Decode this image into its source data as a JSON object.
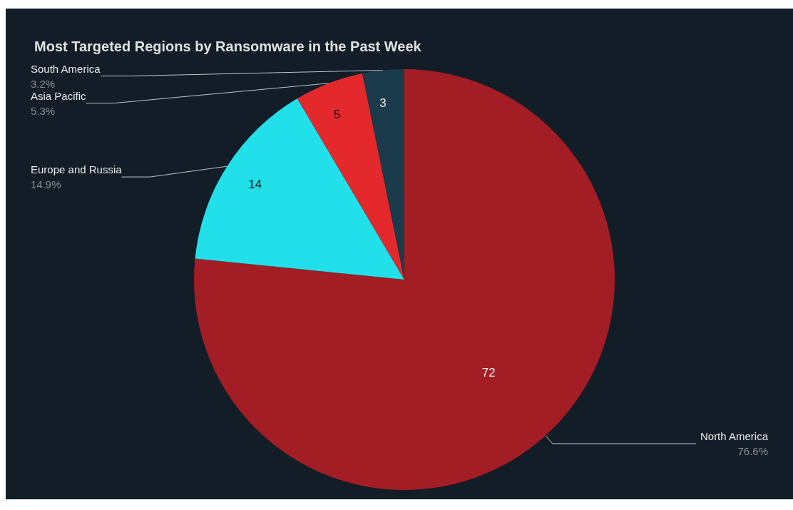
{
  "chart_data": {
    "type": "pie",
    "title": "Most Targeted Regions by Ransomware in the Past Week",
    "categories": [
      "North America",
      "Europe and Russia",
      "Asia Pacific",
      "South America"
    ],
    "values": [
      76.6,
      14.9,
      5.3,
      3.2
    ],
    "colors": [
      "#a31d24",
      "#22e0ea",
      "#e3292c",
      "#1b3a4b"
    ],
    "value_labels": [
      "76.6%",
      "14.9%",
      "5.3%",
      "3.2%"
    ],
    "annotations": [
      "72",
      "14",
      "5",
      "3"
    ]
  }
}
